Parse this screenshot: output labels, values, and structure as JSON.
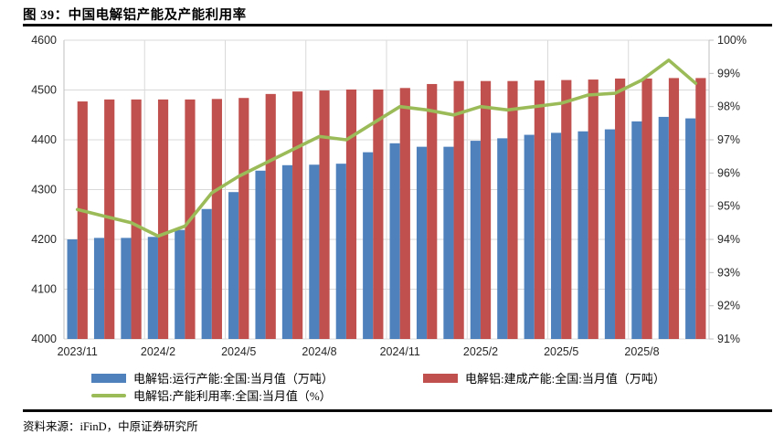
{
  "figure": {
    "title": "图 39：中国电解铝产能及产能利用率",
    "source": "资料来源：iFinD，中原证券研究所"
  },
  "chart_data": {
    "type": "bar",
    "subtype": "grouped bars with overlaid line on secondary axis",
    "categories": [
      "2023/11",
      "2023/12",
      "2024/1",
      "2024/2",
      "2024/3",
      "2024/4",
      "2024/5",
      "2024/6",
      "2024/7",
      "2024/8",
      "2024/9",
      "2024/10",
      "2024/11",
      "2024/12",
      "2025/1",
      "2025/2",
      "2025/3",
      "2025/4",
      "2025/5",
      "2025/6",
      "2025/7",
      "2025/8",
      "2025/9",
      "2025/10"
    ],
    "x_tick_labels": [
      "2023/11",
      "2024/2",
      "2024/5",
      "2024/8",
      "2024/11",
      "2025/2",
      "2025/5",
      "2025/8"
    ],
    "series": [
      {
        "name": "电解铝:运行产能:全国:当月值（万吨）",
        "type": "bar",
        "axis": "left",
        "color": "#4f81bd",
        "values": [
          4200,
          4203,
          4203,
          4205,
          4219,
          4261,
          4295,
          4338,
          4349,
          4350,
          4352,
          4375,
          4393,
          4386,
          4386,
          4398,
          4403,
          4410,
          4414,
          4417,
          4421,
          4437,
          4446,
          4443
        ]
      },
      {
        "name": "电解铝:建成产能:全国:当月值（万吨）",
        "type": "bar",
        "axis": "left",
        "color": "#c0504d",
        "values": [
          4477,
          4481,
          4481,
          4481,
          4481,
          4482,
          4484,
          4492,
          4497,
          4499,
          4501,
          4501,
          4504,
          4512,
          4518,
          4518,
          4518,
          4519,
          4520,
          4521,
          4523,
          4523,
          4524,
          4524
        ]
      },
      {
        "name": "电解铝:产能利用率:全国:当月值（%）",
        "type": "line",
        "axis": "right",
        "color": "#9bbb59",
        "values": [
          94.9,
          94.7,
          94.5,
          94.1,
          94.4,
          95.4,
          95.9,
          96.3,
          96.7,
          97.1,
          97.0,
          97.5,
          98.0,
          97.9,
          97.75,
          98.0,
          97.9,
          98.0,
          98.1,
          98.35,
          98.4,
          98.8,
          99.4,
          98.7
        ]
      }
    ],
    "left_axis": {
      "min": 4000,
      "max": 4600,
      "step": 100
    },
    "right_axis": {
      "min": 91,
      "max": 100,
      "step": 1,
      "suffix": "%"
    },
    "grid": true,
    "gridline_color": "#d9d9d9",
    "legend_position": "bottom"
  }
}
